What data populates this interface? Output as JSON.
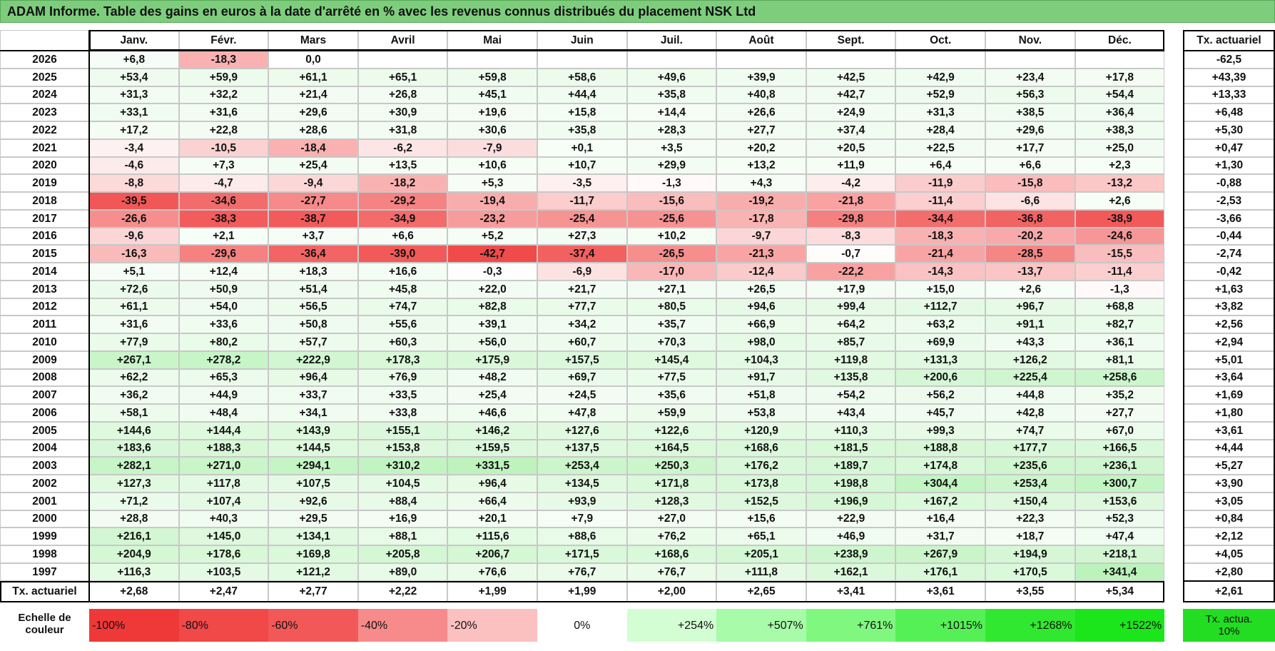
{
  "title": "ADAM Informe. Table des gains en euros à la date d'arrêté en % avec les revenus connus distribués du placement NSK Ltd",
  "table": {
    "columns": [
      "Janv.",
      "Févr.",
      "Mars",
      "Avril",
      "Mai",
      "Juin",
      "Juil.",
      "Août",
      "Sept.",
      "Oct.",
      "Nov.",
      "Déc."
    ],
    "rate_header": "Tx. actuariel",
    "rows": [
      {
        "year": "2026",
        "values": [
          "+6,8",
          "-18,3",
          "0,0"
        ],
        "rate": "-62,5"
      },
      {
        "year": "2025",
        "values": [
          "+53,4",
          "+59,9",
          "+61,1",
          "+65,1",
          "+59,8",
          "+58,6",
          "+49,6",
          "+39,9",
          "+42,5",
          "+42,9",
          "+23,4",
          "+17,8"
        ],
        "rate": "+43,39"
      },
      {
        "year": "2024",
        "values": [
          "+31,3",
          "+32,2",
          "+21,4",
          "+26,8",
          "+45,1",
          "+44,4",
          "+35,8",
          "+40,8",
          "+42,7",
          "+52,9",
          "+56,3",
          "+54,4"
        ],
        "rate": "+13,33"
      },
      {
        "year": "2023",
        "values": [
          "+33,1",
          "+31,6",
          "+29,6",
          "+30,9",
          "+19,6",
          "+15,8",
          "+14,4",
          "+26,6",
          "+24,9",
          "+31,3",
          "+38,5",
          "+36,4"
        ],
        "rate": "+6,48"
      },
      {
        "year": "2022",
        "values": [
          "+17,2",
          "+22,8",
          "+28,6",
          "+31,8",
          "+30,6",
          "+35,8",
          "+28,3",
          "+27,7",
          "+37,4",
          "+28,4",
          "+29,6",
          "+38,3"
        ],
        "rate": "+5,30"
      },
      {
        "year": "2021",
        "values": [
          "-3,4",
          "-10,5",
          "-18,4",
          "-6,2",
          "-7,9",
          "+0,1",
          "+3,5",
          "+20,2",
          "+20,5",
          "+22,5",
          "+17,7",
          "+25,0"
        ],
        "rate": "+0,47"
      },
      {
        "year": "2020",
        "values": [
          "-4,6",
          "+7,3",
          "+25,4",
          "+13,5",
          "+10,6",
          "+10,7",
          "+29,9",
          "+13,2",
          "+11,9",
          "+6,4",
          "+6,6",
          "+2,3"
        ],
        "rate": "+1,30"
      },
      {
        "year": "2019",
        "values": [
          "-8,8",
          "-4,7",
          "-9,4",
          "-18,2",
          "+5,3",
          "-3,5",
          "-1,3",
          "+4,3",
          "-4,2",
          "-11,9",
          "-15,8",
          "-13,2"
        ],
        "rate": "-0,88"
      },
      {
        "year": "2018",
        "values": [
          "-39,5",
          "-34,6",
          "-27,7",
          "-29,2",
          "-19,4",
          "-11,7",
          "-15,6",
          "-19,2",
          "-21,8",
          "-11,4",
          "-6,6",
          "+2,6"
        ],
        "rate": "-2,53"
      },
      {
        "year": "2017",
        "values": [
          "-26,6",
          "-38,3",
          "-38,7",
          "-34,9",
          "-23,2",
          "-25,4",
          "-25,6",
          "-17,8",
          "-29,8",
          "-34,4",
          "-36,8",
          "-38,9"
        ],
        "rate": "-3,66"
      },
      {
        "year": "2016",
        "values": [
          "-9,6",
          "+2,1",
          "+3,7",
          "+6,6",
          "+5,2",
          "+27,3",
          "+10,2",
          "-9,7",
          "-8,3",
          "-18,3",
          "-20,2",
          "-24,6"
        ],
        "rate": "-0,44"
      },
      {
        "year": "2015",
        "values": [
          "-16,3",
          "-29,6",
          "-36,4",
          "-39,0",
          "-42,7",
          "-37,4",
          "-26,5",
          "-21,3",
          "-0,7",
          "-21,4",
          "-28,5",
          "-15,5"
        ],
        "rate": "-2,74"
      },
      {
        "year": "2014",
        "values": [
          "+5,1",
          "+12,4",
          "+18,3",
          "+16,6",
          "-0,3",
          "-6,9",
          "-17,0",
          "-12,4",
          "-22,2",
          "-14,3",
          "-13,7",
          "-11,4"
        ],
        "rate": "-0,42"
      },
      {
        "year": "2013",
        "values": [
          "+72,6",
          "+50,9",
          "+51,4",
          "+45,8",
          "+22,0",
          "+21,7",
          "+27,1",
          "+26,5",
          "+17,9",
          "+15,0",
          "+2,6",
          "-1,3"
        ],
        "rate": "+1,63"
      },
      {
        "year": "2012",
        "values": [
          "+61,1",
          "+54,0",
          "+56,5",
          "+74,7",
          "+82,8",
          "+77,7",
          "+80,5",
          "+94,6",
          "+99,4",
          "+112,7",
          "+96,7",
          "+68,8"
        ],
        "rate": "+3,82"
      },
      {
        "year": "2011",
        "values": [
          "+31,6",
          "+33,6",
          "+50,8",
          "+55,6",
          "+39,1",
          "+34,2",
          "+35,7",
          "+66,9",
          "+64,2",
          "+63,2",
          "+91,1",
          "+82,7"
        ],
        "rate": "+2,56"
      },
      {
        "year": "2010",
        "values": [
          "+77,9",
          "+80,2",
          "+57,7",
          "+60,3",
          "+56,0",
          "+60,7",
          "+70,3",
          "+98,0",
          "+85,7",
          "+69,9",
          "+43,3",
          "+36,1"
        ],
        "rate": "+2,94"
      },
      {
        "year": "2009",
        "values": [
          "+267,1",
          "+278,2",
          "+222,9",
          "+178,3",
          "+175,9",
          "+157,5",
          "+145,4",
          "+104,3",
          "+119,8",
          "+131,3",
          "+126,2",
          "+81,1"
        ],
        "rate": "+5,01"
      },
      {
        "year": "2008",
        "values": [
          "+62,2",
          "+65,3",
          "+96,4",
          "+76,9",
          "+48,2",
          "+69,7",
          "+77,5",
          "+91,7",
          "+135,8",
          "+200,6",
          "+225,4",
          "+258,6"
        ],
        "rate": "+3,64"
      },
      {
        "year": "2007",
        "values": [
          "+36,2",
          "+44,9",
          "+33,7",
          "+33,5",
          "+25,4",
          "+24,5",
          "+35,6",
          "+51,8",
          "+54,2",
          "+56,2",
          "+44,8",
          "+35,2"
        ],
        "rate": "+1,69"
      },
      {
        "year": "2006",
        "values": [
          "+58,1",
          "+48,4",
          "+34,1",
          "+33,8",
          "+46,6",
          "+47,8",
          "+59,9",
          "+53,8",
          "+43,4",
          "+45,7",
          "+42,8",
          "+27,7"
        ],
        "rate": "+1,80"
      },
      {
        "year": "2005",
        "values": [
          "+144,6",
          "+144,4",
          "+143,9",
          "+155,1",
          "+146,2",
          "+127,6",
          "+122,6",
          "+120,9",
          "+110,3",
          "+99,3",
          "+74,7",
          "+67,0"
        ],
        "rate": "+3,61"
      },
      {
        "year": "2004",
        "values": [
          "+183,6",
          "+188,3",
          "+144,5",
          "+153,8",
          "+159,5",
          "+137,5",
          "+164,5",
          "+168,6",
          "+181,5",
          "+188,8",
          "+177,7",
          "+166,5"
        ],
        "rate": "+4,44"
      },
      {
        "year": "2003",
        "values": [
          "+282,1",
          "+271,0",
          "+294,1",
          "+310,2",
          "+331,5",
          "+253,4",
          "+250,3",
          "+176,2",
          "+189,7",
          "+174,8",
          "+235,6",
          "+236,1"
        ],
        "rate": "+5,27"
      },
      {
        "year": "2002",
        "values": [
          "+127,3",
          "+117,8",
          "+107,5",
          "+104,5",
          "+96,4",
          "+134,5",
          "+171,8",
          "+173,8",
          "+198,8",
          "+304,4",
          "+253,4",
          "+300,7"
        ],
        "rate": "+3,90"
      },
      {
        "year": "2001",
        "values": [
          "+71,2",
          "+107,4",
          "+92,6",
          "+88,4",
          "+66,4",
          "+93,9",
          "+128,3",
          "+152,5",
          "+196,9",
          "+167,2",
          "+150,4",
          "+153,6"
        ],
        "rate": "+3,05"
      },
      {
        "year": "2000",
        "values": [
          "+28,8",
          "+40,3",
          "+29,5",
          "+16,9",
          "+20,1",
          "+7,9",
          "+27,0",
          "+15,6",
          "+22,9",
          "+16,4",
          "+22,3",
          "+52,3"
        ],
        "rate": "+0,84"
      },
      {
        "year": "1999",
        "values": [
          "+216,1",
          "+145,0",
          "+134,1",
          "+88,1",
          "+115,6",
          "+88,6",
          "+76,2",
          "+65,1",
          "+46,9",
          "+31,7",
          "+18,7",
          "+47,4"
        ],
        "rate": "+2,12"
      },
      {
        "year": "1998",
        "values": [
          "+204,9",
          "+178,6",
          "+169,8",
          "+205,8",
          "+206,7",
          "+171,5",
          "+168,6",
          "+205,1",
          "+238,9",
          "+267,9",
          "+194,9",
          "+218,1"
        ],
        "rate": "+4,05"
      },
      {
        "year": "1997",
        "values": [
          "+116,3",
          "+103,5",
          "+121,2",
          "+89,0",
          "+76,6",
          "+76,7",
          "+76,7",
          "+111,8",
          "+162,1",
          "+176,1",
          "+170,5",
          "+341,4"
        ],
        "rate": "+2,80"
      }
    ],
    "footer": {
      "label": "Tx. actuariel",
      "values": [
        "+2,68",
        "+2,47",
        "+2,77",
        "+2,22",
        "+1,99",
        "+1,99",
        "+2,00",
        "+2,65",
        "+3,41",
        "+3,61",
        "+3,55",
        "+5,34"
      ],
      "rate": "+2,61"
    }
  },
  "scale": {
    "label": "Echelle de couleur",
    "items": [
      "-100%",
      "-80%",
      "-60%",
      "-40%",
      "-20%",
      "0%",
      "+254%",
      "+507%",
      "+761%",
      "+1015%",
      "+1268%",
      "+1522%"
    ],
    "rate": "Tx. actua. 10%"
  }
}
